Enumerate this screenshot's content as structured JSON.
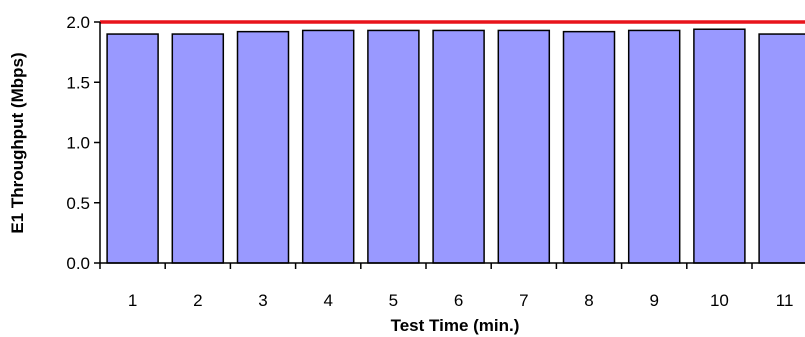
{
  "chart_data": {
    "type": "bar",
    "title": "",
    "xlabel": "Test Time (min.)",
    "ylabel": "E1 Throughput (Mbps)",
    "categories": [
      "1",
      "2",
      "3",
      "4",
      "5",
      "6",
      "7",
      "8",
      "9",
      "10",
      "11"
    ],
    "values": [
      1.9,
      1.9,
      1.92,
      1.93,
      1.93,
      1.93,
      1.93,
      1.92,
      1.93,
      1.94,
      1.9
    ],
    "ylim": [
      0,
      2.0
    ],
    "yticks": [
      0.0,
      0.5,
      1.0,
      1.5,
      2.0
    ],
    "ytick_labels": [
      "0.0",
      "0.5",
      "1.0",
      "1.5",
      "2.0"
    ],
    "reference_line": {
      "value": 2.0,
      "color": "#e8141b"
    },
    "bar_color": "#9999ff",
    "bar_edge_color": "#000000",
    "grid": false,
    "legend": "none"
  }
}
